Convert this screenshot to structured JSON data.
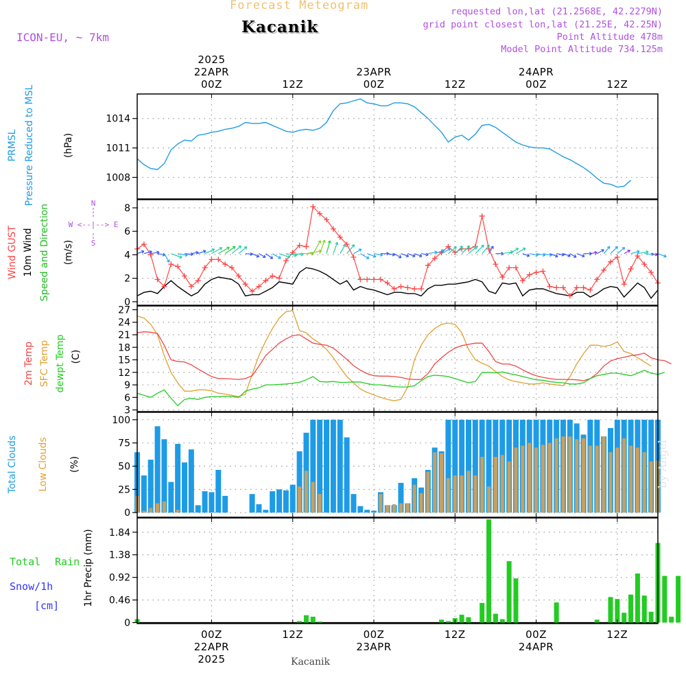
{
  "header": {
    "title": "Forecast Meteogram",
    "location": "Kacanik",
    "model": "ICON-EU, ~ 7km",
    "requested": "requested lon,lat (21.2568E, 42.2279N)",
    "grid_point": "grid point closest lon,lat (21.25E, 42.25N)",
    "point_alt": "Point Altitude 478m",
    "model_alt": "Model Point Altitude 734.125m"
  },
  "footer": {
    "location": "Kacanik",
    "watermark": "by Angel"
  },
  "colors": {
    "pressure": "#1e9be6",
    "gust": "#ff4444",
    "wind": "#000000",
    "dir": "#22bb22",
    "temp": "#ee4444",
    "sfc": "#e0a030",
    "dew": "#22cc22",
    "total_cloud": "#1e9be6",
    "low_cloud": "#c8a060",
    "precip": "#22cc22",
    "title": "#f0c070",
    "purple": "#b050e0",
    "snow": "#3333ff"
  },
  "time_axis": {
    "top_labels": [
      {
        "t": 0,
        "lines": [
          "2025",
          "22APR",
          "00Z"
        ]
      },
      {
        "t": 12,
        "lines": [
          "12Z"
        ]
      },
      {
        "t": 24,
        "lines": [
          "23APR",
          "00Z"
        ]
      },
      {
        "t": 36,
        "lines": [
          "12Z"
        ]
      },
      {
        "t": 48,
        "lines": [
          "24APR",
          "00Z"
        ]
      },
      {
        "t": 60,
        "lines": [
          "12Z"
        ]
      }
    ],
    "bottom_labels": [
      {
        "t": 0,
        "lines": [
          "00Z",
          "22APR",
          "2025"
        ]
      },
      {
        "t": 12,
        "lines": [
          "12Z"
        ]
      },
      {
        "t": 24,
        "lines": [
          "00Z",
          "23APR"
        ]
      },
      {
        "t": 36,
        "lines": [
          "12Z"
        ]
      },
      {
        "t": 48,
        "lines": [
          "00Z",
          "24APR"
        ]
      },
      {
        "t": 60,
        "lines": [
          "12Z"
        ]
      }
    ]
  },
  "panel_labels": {
    "pressure": [
      "PRMSL",
      "Pressure Reduced to MSL",
      "(hPa)"
    ],
    "wind": [
      "Wind GUST",
      "10m Wind",
      "Speed and Direction",
      "(m/s)"
    ],
    "compass": [
      "N",
      "W <--|--> E",
      "S"
    ],
    "temp": [
      "2m Temp",
      "SFC Temp",
      "dewpt Temp",
      "(C)"
    ],
    "clouds": [
      "Total Clouds",
      "Low Clouds",
      "(%)"
    ],
    "precip": [
      "Total",
      "Rain",
      "Snow/1h",
      "[cm]",
      "1hr Precip (mm)"
    ]
  },
  "chart_data": [
    {
      "type": "line",
      "title": "PRMSL Pressure Reduced to MSL",
      "ylabel": "hPa",
      "ylim": [
        1005.8,
        1016.5
      ],
      "yticks": [
        1008,
        1011,
        1014
      ],
      "xlim": [
        -11,
        66
      ],
      "series": [
        {
          "name": "PRMSL",
          "x_start": -11,
          "x_step": 1,
          "values": [
            1009.9,
            1009.3,
            1008.9,
            1008.8,
            1009.4,
            1010.8,
            1011.4,
            1011.8,
            1011.7,
            1012.3,
            1012.4,
            1012.6,
            1012.7,
            1012.9,
            1013.0,
            1013.2,
            1013.6,
            1013.5,
            1013.5,
            1013.6,
            1013.3,
            1013.0,
            1012.7,
            1012.6,
            1012.8,
            1012.9,
            1012.8,
            1013.0,
            1013.6,
            1014.8,
            1015.5,
            1015.6,
            1015.8,
            1016.0,
            1015.6,
            1015.5,
            1015.3,
            1015.3,
            1015.6,
            1015.6,
            1015.5,
            1015.2,
            1014.6,
            1014.0,
            1013.3,
            1012.6,
            1011.6,
            1012.1,
            1012.3,
            1011.8,
            1012.4,
            1013.3,
            1013.4,
            1013.1,
            1012.6,
            1012.1,
            1011.6,
            1011.3,
            1011.1,
            1011.0,
            1011.0,
            1010.9,
            1010.5,
            1010.1,
            1009.8,
            1009.4,
            1009.0,
            1008.5,
            1007.9,
            1007.4,
            1007.3,
            1007.0,
            1007.1,
            1007.7
          ]
        }
      ]
    },
    {
      "type": "line",
      "title": "Wind GUST / 10m Wind Speed and Direction",
      "ylabel": "m/s",
      "ylim": [
        -0.3,
        8.7
      ],
      "yticks": [
        0,
        2,
        4,
        6,
        8
      ],
      "xlim": [
        -11,
        66
      ],
      "series": [
        {
          "name": "Wind GUST",
          "x_start": -11,
          "x_step": 1,
          "values": [
            4.5,
            4.9,
            4.0,
            1.9,
            1.3,
            3.2,
            3.0,
            2.2,
            1.3,
            1.8,
            2.9,
            3.6,
            3.6,
            3.2,
            2.9,
            2.2,
            1.5,
            0.9,
            1.3,
            1.8,
            2.2,
            2.0,
            3.5,
            4.2,
            4.8,
            4.7,
            8.1,
            7.5,
            7.0,
            6.2,
            5.5,
            4.9,
            3.8,
            1.9,
            1.9,
            1.9,
            1.9,
            1.6,
            1.1,
            1.3,
            1.2,
            1.1,
            1.1,
            3.1,
            3.7,
            4.2,
            4.7,
            4.2,
            4.5,
            4.5,
            4.7,
            7.3,
            4.5,
            3.2,
            2.1,
            2.9,
            2.9,
            1.8,
            2.3,
            2.5,
            2.6,
            1.3,
            1.2,
            1.2,
            0.5,
            1.2,
            1.2,
            1.0,
            1.9,
            2.7,
            3.4,
            3.8,
            1.5,
            2.8,
            3.9,
            3.2,
            2.5,
            1.6
          ]
        },
        {
          "name": "10m Wind",
          "x_start": -11,
          "x_step": 1,
          "values": [
            0.5,
            0.8,
            0.9,
            0.7,
            1.3,
            1.8,
            1.3,
            0.9,
            0.5,
            0.8,
            1.5,
            1.9,
            2.1,
            2.0,
            1.9,
            1.5,
            0.5,
            0.6,
            0.6,
            0.9,
            1.2,
            1.7,
            1.6,
            1.5,
            2.5,
            2.9,
            2.8,
            2.6,
            2.3,
            1.9,
            1.5,
            1.8,
            1.0,
            1.3,
            1.1,
            1.0,
            0.8,
            0.6,
            0.8,
            0.8,
            0.7,
            0.7,
            0.5,
            1.1,
            1.4,
            1.4,
            1.5,
            1.5,
            1.6,
            1.7,
            1.9,
            1.7,
            0.9,
            0.7,
            1.6,
            1.5,
            1.6,
            0.5,
            1.0,
            1.1,
            1.1,
            0.9,
            0.7,
            0.6,
            0.5,
            0.8,
            0.8,
            0.4,
            0.7,
            1.1,
            1.3,
            1.2,
            0.4,
            1.0,
            1.6,
            1.2,
            0.3,
            1.0
          ]
        }
      ],
      "direction_arrows": {
        "x_start": -11,
        "x_step": 1,
        "direction_to_deg": [
          70,
          75,
          80,
          100,
          150,
          110,
          100,
          95,
          80,
          70,
          65,
          60,
          60,
          55,
          50,
          50,
          95,
          115,
          120,
          125,
          120,
          110,
          100,
          95,
          90,
          80,
          30,
          20,
          15,
          20,
          30,
          40,
          60,
          120,
          110,
          100,
          90,
          100,
          120,
          110,
          110,
          110,
          100,
          80,
          70,
          60,
          50,
          45,
          45,
          50,
          45,
          40,
          30,
          90,
          80,
          60,
          60,
          110,
          100,
          100,
          100,
          110,
          100,
          110,
          120,
          110,
          90,
          80,
          60,
          40,
          45,
          50,
          60,
          75,
          80,
          95,
          100,
          110
        ],
        "speed_ms": [
          0.5,
          0.8,
          0.9,
          0.7,
          1.3,
          1.8,
          1.3,
          0.9,
          0.5,
          0.8,
          1.5,
          1.9,
          2.1,
          2.0,
          1.9,
          1.5,
          0.5,
          0.6,
          0.6,
          0.9,
          1.2,
          1.7,
          1.6,
          1.5,
          2.5,
          2.9,
          2.8,
          2.6,
          2.3,
          1.9,
          1.5,
          1.8,
          1.0,
          1.3,
          1.1,
          1.0,
          0.8,
          0.6,
          0.8,
          0.8,
          0.7,
          0.7,
          0.5,
          1.1,
          1.4,
          1.4,
          1.5,
          1.5,
          1.6,
          1.7,
          1.9,
          1.7,
          0.9,
          0.7,
          1.6,
          1.5,
          1.6,
          0.5,
          1.0,
          1.1,
          1.1,
          0.9,
          0.7,
          0.6,
          0.5,
          0.8,
          0.8,
          0.4,
          0.7,
          1.1,
          1.3,
          1.2,
          0.4,
          1.0,
          1.6,
          1.2,
          0.3,
          1.0
        ]
      }
    },
    {
      "type": "line",
      "title": "2m Temp / SFC Temp / dewpt Temp",
      "ylabel": "C",
      "ylim": [
        2.6,
        27.9
      ],
      "yticks": [
        3,
        6,
        9,
        12,
        15,
        18,
        21,
        24,
        27
      ],
      "xlim": [
        -11,
        66
      ],
      "series": [
        {
          "name": "2m Temp",
          "x_start": -11,
          "x_step": 1,
          "values": [
            21.5,
            21.7,
            21.6,
            21.3,
            18.5,
            15.0,
            14.6,
            14.5,
            13.8,
            12.8,
            11.9,
            11.0,
            10.5,
            10.5,
            10.4,
            10.3,
            10.5,
            11.2,
            13.5,
            16.0,
            17.5,
            19.0,
            20.0,
            20.8,
            21.0,
            20.0,
            19.0,
            18.7,
            18.5,
            17.8,
            16.5,
            15.1,
            13.6,
            12.5,
            11.7,
            11.2,
            11.1,
            11.1,
            11.0,
            10.8,
            10.4,
            10.3,
            10.3,
            11.7,
            14.0,
            15.5,
            16.8,
            17.8,
            18.4,
            18.7,
            19.0,
            19.0,
            17.0,
            14.6,
            14.0,
            14.0,
            13.5,
            12.6,
            11.8,
            11.2,
            10.8,
            10.5,
            10.3,
            10.3,
            10.3,
            10.2,
            10.0,
            10.5,
            11.7,
            13.5,
            14.7,
            15.3,
            15.6,
            16.0,
            16.2,
            16.6,
            15.5,
            15.0,
            14.8,
            14.0
          ]
        },
        {
          "name": "SFC Temp",
          "x_start": -11,
          "x_step": 1,
          "values": [
            25.5,
            25.0,
            23.5,
            21.0,
            16.0,
            12.0,
            9.5,
            7.5,
            7.5,
            7.8,
            7.8,
            7.6,
            7.0,
            6.8,
            6.5,
            6.2,
            6.8,
            11.5,
            16.0,
            19.5,
            22.5,
            25.0,
            26.5,
            26.8,
            22.0,
            21.5,
            20.0,
            19.0,
            17.5,
            15.5,
            13.2,
            11.0,
            9.5,
            8.0,
            7.2,
            6.6,
            6.0,
            5.5,
            5.2,
            5.5,
            8.5,
            15.0,
            18.5,
            21.0,
            22.5,
            23.5,
            23.8,
            23.5,
            21.5,
            17.5,
            15.0,
            14.2,
            13.5,
            12.2,
            11.0,
            10.2,
            9.8,
            9.5,
            9.2,
            9.2,
            9.5,
            9.2,
            9.0,
            8.8,
            11.0,
            14.0,
            16.5,
            18.5,
            18.5,
            18.2,
            18.5,
            19.3,
            17.0,
            16.5,
            15.5,
            14.5,
            13.5
          ]
        },
        {
          "name": "dewpt Temp",
          "x_start": -11,
          "x_step": 1,
          "values": [
            7.0,
            6.5,
            6.0,
            7.0,
            7.8,
            5.8,
            4.0,
            5.5,
            5.8,
            5.5,
            6.0,
            6.2,
            6.2,
            6.3,
            6.2,
            6.0,
            7.5,
            8.0,
            8.3,
            9.0,
            9.0,
            9.1,
            9.2,
            9.4,
            9.6,
            10.2,
            11.0,
            9.8,
            9.7,
            9.8,
            9.6,
            9.6,
            9.7,
            9.7,
            9.3,
            9.0,
            9.0,
            8.8,
            8.6,
            8.5,
            8.5,
            8.8,
            10.0,
            11.0,
            11.3,
            11.2,
            11.0,
            10.5,
            10.0,
            9.5,
            9.8,
            12.0,
            12.0,
            11.9,
            12.1,
            11.7,
            11.4,
            11.0,
            10.6,
            10.2,
            10.1,
            9.8,
            9.6,
            9.5,
            9.2,
            9.2,
            9.5,
            10.5,
            11.2,
            11.5,
            11.8,
            11.8,
            11.5,
            11.2,
            11.8,
            12.5,
            11.8,
            11.5,
            12.0
          ]
        }
      ]
    },
    {
      "type": "bar",
      "title": "Total Clouds / Low Clouds",
      "ylabel": "%",
      "ylim": [
        -5,
        108
      ],
      "yticks": [
        0,
        25,
        50,
        75,
        100
      ],
      "xlim": [
        -11,
        66
      ],
      "series": [
        {
          "name": "Total Clouds",
          "x_start": -11,
          "x_step": 1,
          "values": [
            65,
            40,
            57,
            93,
            79,
            33,
            74,
            54,
            68,
            8,
            23,
            22,
            46,
            18,
            0,
            0,
            0,
            20,
            9,
            3,
            23,
            25,
            24,
            30,
            66,
            86,
            100,
            100,
            100,
            100,
            100,
            81,
            20,
            7,
            3,
            2,
            22,
            8,
            8,
            32,
            10,
            37,
            27,
            46,
            70,
            66,
            100,
            100,
            100,
            100,
            100,
            100,
            100,
            100,
            100,
            100,
            100,
            100,
            100,
            100,
            100,
            100,
            100,
            100,
            100,
            96,
            84,
            100,
            100,
            82,
            91,
            100,
            100,
            100,
            100,
            100,
            100,
            100
          ]
        },
        {
          "name": "Low Clouds",
          "x_start": -11,
          "x_step": 1,
          "values": [
            18,
            2,
            5,
            10,
            12,
            0,
            3,
            0,
            0,
            0,
            0,
            0,
            0,
            0,
            0,
            0,
            0,
            0,
            0,
            0,
            0,
            0,
            0,
            0,
            28,
            45,
            33,
            20,
            0,
            0,
            0,
            0,
            0,
            0,
            0,
            0,
            20,
            8,
            9,
            10,
            10,
            30,
            21,
            44,
            65,
            64,
            37,
            40,
            40,
            45,
            40,
            60,
            28,
            60,
            62,
            55,
            70,
            72,
            75,
            70,
            73,
            75,
            80,
            82,
            82,
            79,
            80,
            72,
            72,
            82,
            65,
            70,
            80,
            72,
            70,
            65,
            55,
            56,
            80
          ]
        }
      ]
    },
    {
      "type": "bar",
      "title": "1hr Precip (mm)",
      "ylabel": "1hr Precip (mm)",
      "ylim": [
        -0.02,
        2.13
      ],
      "yticks": [
        0,
        0.46,
        0.92,
        1.38,
        1.84
      ],
      "xlim": [
        -11,
        66
      ],
      "series": [
        {
          "name": "Total Rain",
          "x_start": -11,
          "x_step": 1,
          "values": [
            0.07,
            0,
            0,
            0,
            0,
            0,
            0,
            0,
            0,
            0,
            0,
            0,
            0,
            0,
            0,
            0,
            0,
            0,
            0,
            0,
            0,
            0,
            0,
            0,
            0.03,
            0.15,
            0.12,
            0.02,
            0,
            0,
            0,
            0,
            0,
            0,
            0,
            0,
            0,
            0,
            0,
            0,
            0,
            0,
            0,
            0,
            0,
            0.06,
            0.03,
            0.09,
            0.16,
            0.11,
            0,
            0.4,
            2.1,
            0.18,
            0.07,
            1.25,
            0.9,
            0,
            0,
            0,
            0,
            0,
            0.41,
            0,
            0,
            0,
            0,
            0,
            0.06,
            0,
            0.52,
            0.48,
            0.2,
            0.57,
            1.0,
            0.55,
            0.22,
            1.62,
            0.95,
            0.12,
            0.95
          ]
        }
      ]
    }
  ]
}
